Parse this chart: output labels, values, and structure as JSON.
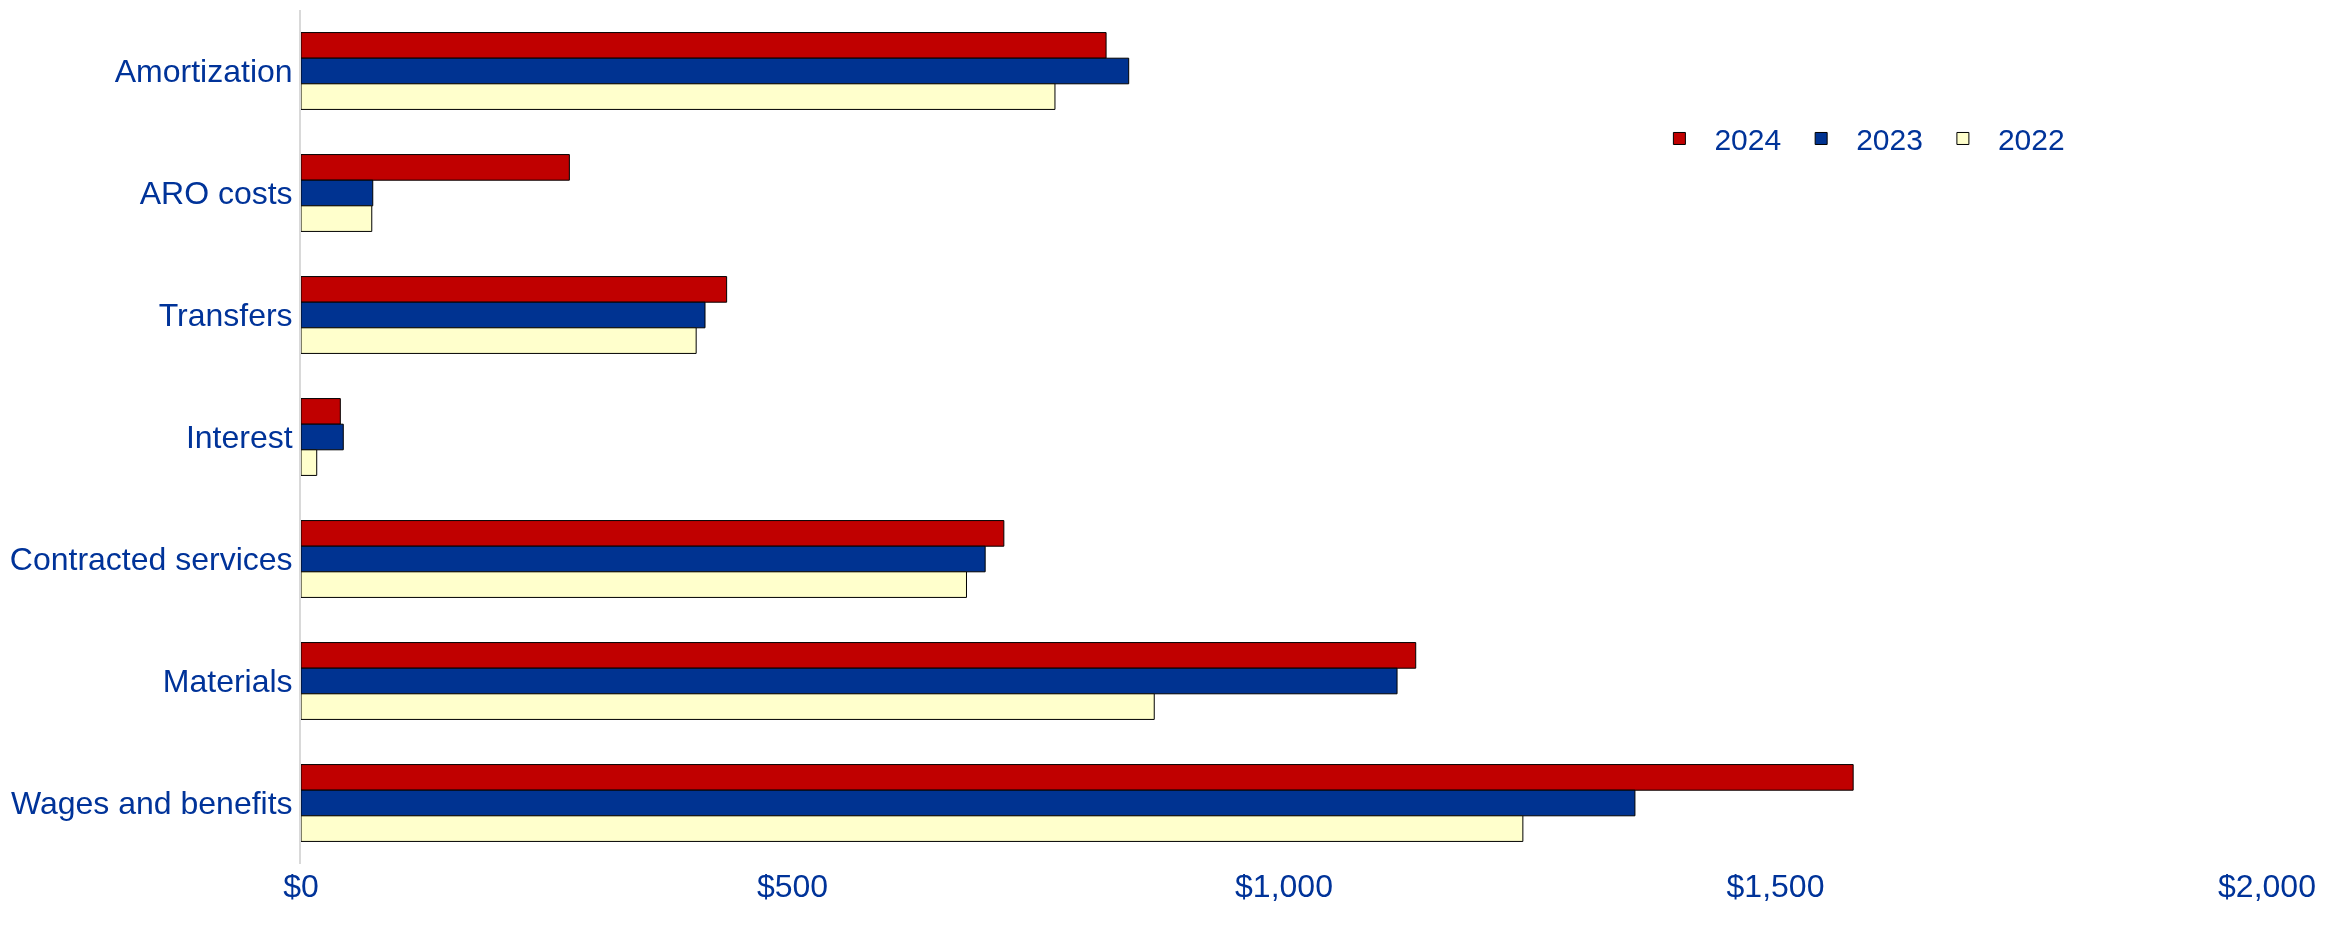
{
  "chart_data": {
    "type": "bar",
    "orientation": "horizontal",
    "categories": [
      "Amortization",
      "ARO costs",
      "Transfers",
      "Interest",
      "Contracted services",
      "Materials",
      "Wages and benefits"
    ],
    "series": [
      {
        "name": "2024",
        "color": "#c00000",
        "values": [
          819,
          273,
          433,
          40,
          715,
          1134,
          1579
        ]
      },
      {
        "name": "2023",
        "color": "#003391",
        "values": [
          842,
          73,
          411,
          43,
          696,
          1115,
          1357
        ]
      },
      {
        "name": "2022",
        "color": "#ffffcc",
        "values": [
          767,
          72,
          402,
          16,
          677,
          868,
          1243
        ]
      }
    ],
    "xlim": [
      0,
      2000
    ],
    "xticks": [
      {
        "value": 0,
        "label": "$0"
      },
      {
        "value": 500,
        "label": "$500"
      },
      {
        "value": 1000,
        "label": "$1,000"
      },
      {
        "value": 1500,
        "label": "$1,500"
      },
      {
        "value": 2000,
        "label": "$2,000"
      }
    ],
    "legend": "top right"
  }
}
